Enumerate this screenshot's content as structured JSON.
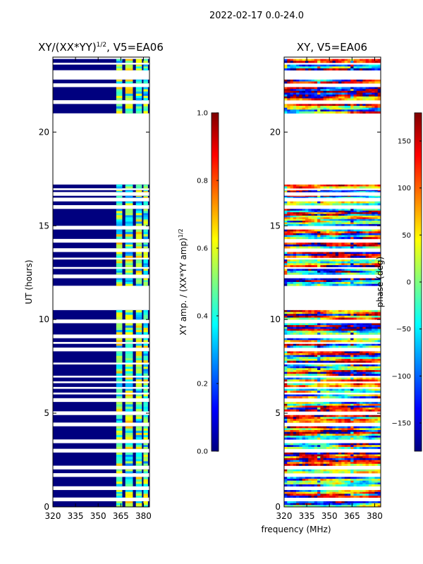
{
  "figure": {
    "suptitle": "2022-02-17 0.0-24.0",
    "shared_xlabel": "frequency (MHz)"
  },
  "colors": {
    "white_gap": "#ffffff",
    "low": "#00007f",
    "jet_stops": [
      "#00007f",
      "#0000ff",
      "#007fff",
      "#00ffff",
      "#7fff7f",
      "#ffff00",
      "#ff7f00",
      "#ff0000",
      "#7f0000"
    ]
  },
  "chart_data": [
    {
      "type": "heatmap",
      "title_main": "XY/(XX*YY)",
      "title_sup": "1/2",
      "title_rest": ", V5=EA06",
      "xlabel": "",
      "ylabel": "UT (hours)",
      "xlim": [
        320,
        384
      ],
      "ylim": [
        0,
        24
      ],
      "xticks": [
        320,
        335,
        350,
        365,
        380
      ],
      "xtick_labels": [
        "320",
        "335",
        "350",
        "365",
        "380"
      ],
      "yticks": [
        0,
        5,
        10,
        15,
        20
      ],
      "ytick_labels": [
        "0",
        "5",
        "10",
        "15",
        "20"
      ],
      "colorbar": {
        "label_main": "XY amp. / (XX*YY amp)",
        "label_sup": "1/2",
        "vmin": 0.0,
        "vmax": 1.0,
        "ticks": [
          0.0,
          0.2,
          0.4,
          0.6,
          0.8,
          1.0
        ],
        "tick_labels": [
          "0.0",
          "0.2",
          "0.4",
          "0.6",
          "0.8",
          "1.0"
        ]
      },
      "data_ut_ranges": [
        [
          0.0,
          0.3
        ],
        [
          0.5,
          0.9
        ],
        [
          1.1,
          1.6
        ],
        [
          1.8,
          2.0
        ],
        [
          2.2,
          2.9
        ],
        [
          3.1,
          3.4
        ],
        [
          3.6,
          4.3
        ],
        [
          4.5,
          4.9
        ],
        [
          5.1,
          5.6
        ],
        [
          5.8,
          6.0
        ],
        [
          6.1,
          6.3
        ],
        [
          6.4,
          6.6
        ],
        [
          6.7,
          6.9
        ],
        [
          7.0,
          7.6
        ],
        [
          7.7,
          8.3
        ],
        [
          8.5,
          8.7
        ],
        [
          8.8,
          9.0
        ],
        [
          9.2,
          9.8
        ],
        [
          10.0,
          10.5
        ],
        [
          11.8,
          12.2
        ],
        [
          12.4,
          12.7
        ],
        [
          12.8,
          13.2
        ],
        [
          13.3,
          13.6
        ],
        [
          13.8,
          14.1
        ],
        [
          14.3,
          14.8
        ],
        [
          15.0,
          15.9
        ],
        [
          16.1,
          16.3
        ],
        [
          16.5,
          16.6
        ],
        [
          16.8,
          16.9
        ],
        [
          17.0,
          17.2
        ],
        [
          21.0,
          21.5
        ],
        [
          21.7,
          22.4
        ],
        [
          22.6,
          22.8
        ],
        [
          23.3,
          23.6
        ],
        [
          23.7,
          23.9
        ]
      ],
      "active_frequency_ranges_mhz": [
        [
          362,
          366
        ],
        [
          368,
          373
        ],
        [
          375,
          379
        ],
        [
          380,
          383
        ]
      ]
    },
    {
      "type": "heatmap",
      "title": "XY, V5=EA06",
      "xlabel": "",
      "ylabel": "",
      "xlim": [
        320,
        384
      ],
      "ylim": [
        0,
        24
      ],
      "xticks": [
        320,
        335,
        350,
        365,
        380
      ],
      "xtick_labels": [
        "320",
        "335",
        "350",
        "365",
        "380"
      ],
      "yticks": [
        0,
        5,
        10,
        15,
        20
      ],
      "ytick_labels": [
        "0",
        "5",
        "10",
        "15",
        "20"
      ],
      "colorbar": {
        "label": "phase (deg)",
        "vmin": -180,
        "vmax": 180,
        "ticks": [
          -150,
          -100,
          -50,
          0,
          50,
          100,
          150
        ],
        "tick_labels": [
          "−150",
          "−100",
          "−50",
          "0",
          "50",
          "100",
          "150"
        ]
      },
      "data_ut_ranges": [
        [
          0.0,
          0.3
        ],
        [
          0.5,
          0.9
        ],
        [
          1.1,
          1.6
        ],
        [
          1.8,
          2.0
        ],
        [
          2.2,
          2.9
        ],
        [
          3.1,
          3.4
        ],
        [
          3.6,
          4.3
        ],
        [
          4.5,
          4.9
        ],
        [
          5.1,
          5.6
        ],
        [
          5.8,
          6.0
        ],
        [
          6.1,
          6.3
        ],
        [
          6.4,
          6.6
        ],
        [
          6.7,
          6.9
        ],
        [
          7.0,
          7.6
        ],
        [
          7.7,
          8.3
        ],
        [
          8.5,
          8.7
        ],
        [
          8.8,
          9.0
        ],
        [
          9.2,
          9.8
        ],
        [
          10.0,
          10.5
        ],
        [
          11.8,
          12.2
        ],
        [
          12.4,
          12.7
        ],
        [
          12.8,
          13.2
        ],
        [
          13.3,
          13.6
        ],
        [
          13.8,
          14.1
        ],
        [
          14.3,
          14.8
        ],
        [
          15.0,
          15.9
        ],
        [
          16.1,
          16.3
        ],
        [
          16.5,
          16.6
        ],
        [
          16.8,
          16.9
        ],
        [
          17.0,
          17.2
        ],
        [
          21.0,
          21.5
        ],
        [
          21.7,
          22.4
        ],
        [
          22.6,
          22.8
        ],
        [
          23.3,
          23.6
        ],
        [
          23.7,
          23.9
        ]
      ]
    }
  ]
}
